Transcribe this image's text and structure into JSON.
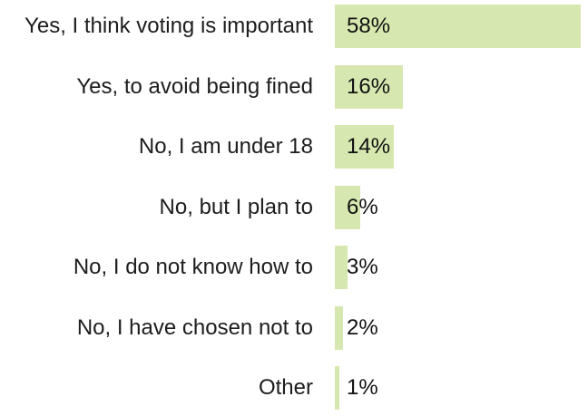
{
  "chart_data": {
    "type": "bar",
    "orientation": "horizontal",
    "title": "",
    "xlabel": "",
    "ylabel": "",
    "categories": [
      "Yes, I think voting is important",
      "Yes, to avoid being fined",
      "No, I am under 18",
      "No, but I plan to",
      "No, I do not know how to",
      "No, I have chosen not to",
      "Other"
    ],
    "values": [
      58,
      16,
      14,
      6,
      3,
      2,
      1
    ],
    "value_labels": [
      "58%",
      "16%",
      "14%",
      "6%",
      "3%",
      "2%",
      "1%"
    ],
    "xlim": [
      0,
      60
    ],
    "grid": false,
    "legend": false,
    "axes_visible": false,
    "bar_color": "#d6e8af",
    "label_text_color": "#1d1d1d",
    "value_text_color": "#111111",
    "background_color": "#ffffff"
  }
}
